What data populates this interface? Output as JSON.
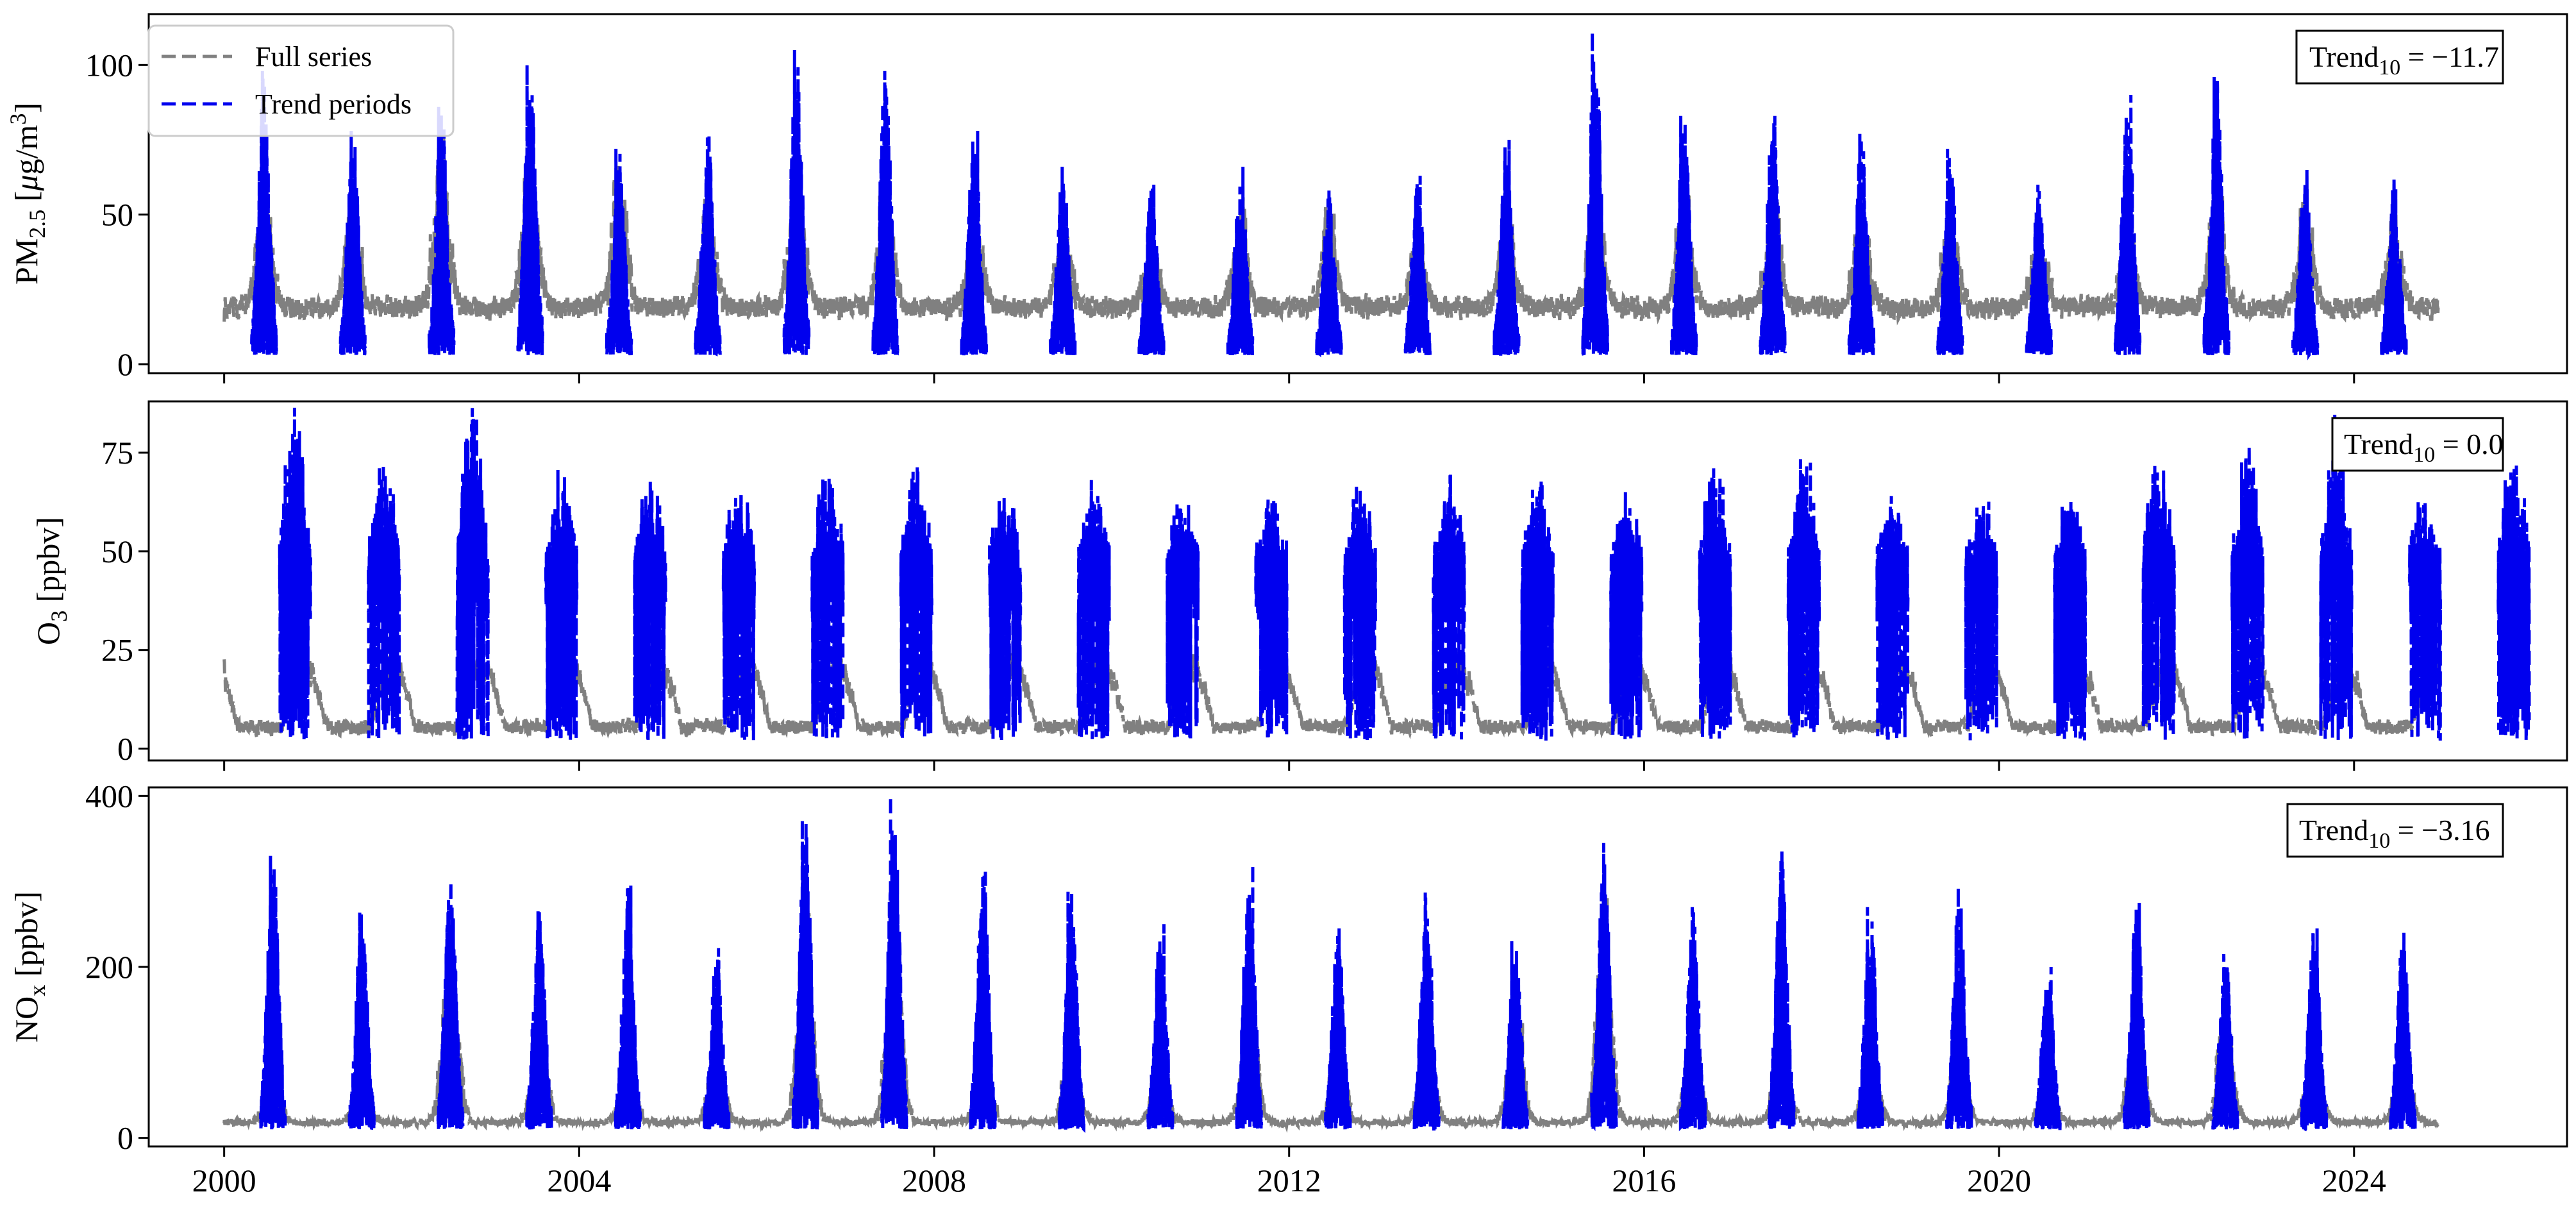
{
  "figure": {
    "legend": [
      {
        "label": "Full series",
        "color": "#808080",
        "style": "dashed"
      },
      {
        "label": "Trend periods",
        "color": "#0000ee",
        "style": "dashed"
      }
    ],
    "legend_placement": "top-left of first panel",
    "x_tick_labels": [
      "2000",
      "2004",
      "2008",
      "2012",
      "2016",
      "2020",
      "2024"
    ]
  },
  "chart_data": [
    {
      "type": "line",
      "panel": "PM2.5",
      "ylabel": "PM2.5 [μg/m3]",
      "ylabel_main": "PM",
      "ylabel_sub": "2.5",
      "ylabel_unit_pre": " [",
      "ylabel_unit_mu": "μ",
      "ylabel_unit_mid": "g/m",
      "ylabel_unit_sup": "3",
      "ylabel_unit_post": "]",
      "xlim": [
        1999.15,
        2026.4
      ],
      "ylim": [
        -3,
        117
      ],
      "y_ticks": [
        0,
        50,
        100
      ],
      "trend_label_main": "Trend",
      "trend_label_sub": "10",
      "trend_value": " = −11.7",
      "full_series": {
        "name": "Full series",
        "baseline_mean": 19,
        "baseline_amplitude": 5,
        "winter_peaks": [
          70,
          60,
          88,
          85,
          78,
          62,
          82,
          70,
          60,
          55,
          48,
          60,
          58,
          52,
          60,
          70,
          62,
          65,
          65,
          60,
          50,
          55,
          70,
          68,
          58,
          70
        ]
      },
      "trend_series": {
        "name": "Trend periods",
        "season_center": 0.45,
        "season_width": 0.28,
        "peak_maxima": [
          98,
          78,
          86,
          100,
          72,
          77,
          105,
          98,
          78,
          66,
          60,
          66,
          58,
          63,
          75,
          111,
          83,
          83,
          77,
          72,
          60,
          90,
          96,
          65,
          62
        ],
        "min_value": 3
      }
    },
    {
      "type": "line",
      "panel": "O3",
      "ylabel": "O3 [ppbv]",
      "ylabel_main": "O",
      "ylabel_sub": "3",
      "ylabel_unit_pre": " [ppbv]",
      "xlim": [
        1999.15,
        2026.4
      ],
      "ylim": [
        -3,
        88
      ],
      "y_ticks": [
        0,
        25,
        50,
        75
      ],
      "trend_label_main": "Trend",
      "trend_label_sub": "10",
      "trend_value": " = 0.0",
      "full_series": {
        "name": "Full series",
        "baseline_min": 3,
        "seasonal_peak": 18,
        "peak_phase": 0.9
      },
      "trend_series": {
        "name": "Trend periods",
        "season_center": 0.8,
        "season_width": 0.35,
        "peak_maxima": [
          80,
          66,
          84,
          65,
          64,
          65,
          68,
          66,
          60,
          64,
          58,
          61,
          61,
          63,
          61,
          58,
          66,
          69,
          58,
          57,
          60,
          70,
          73,
          78,
          58,
          70
        ],
        "core_level": 42,
        "min_value": 2
      }
    },
    {
      "type": "line",
      "panel": "NOx",
      "ylabel": "NOx [ppbv]",
      "ylabel_main": "NO",
      "ylabel_sub": "x",
      "ylabel_unit_pre": " [ppbv]",
      "xlim": [
        1999.15,
        2026.4
      ],
      "ylim": [
        -10,
        410
      ],
      "y_ticks": [
        0,
        200,
        400
      ],
      "trend_label_main": "Trend",
      "trend_label_sub": "10",
      "trend_value": " = −3.16",
      "full_series": {
        "name": "Full series",
        "baseline_mean": 18,
        "winter_peaks": [
          100,
          90,
          300,
          150,
          110,
          130,
          300,
          290,
          120,
          150,
          120,
          200,
          130,
          150,
          180,
          300,
          150,
          160,
          150,
          140,
          90,
          200,
          180,
          150,
          130
        ]
      },
      "trend_series": {
        "name": "Trend periods",
        "season_center": 0.55,
        "season_width": 0.28,
        "peak_maxima": [
          330,
          265,
          300,
          265,
          295,
          222,
          372,
          400,
          315,
          288,
          250,
          320,
          245,
          287,
          230,
          345,
          270,
          335,
          270,
          293,
          200,
          275,
          215,
          245,
          240
        ],
        "min_value": 10
      }
    }
  ]
}
